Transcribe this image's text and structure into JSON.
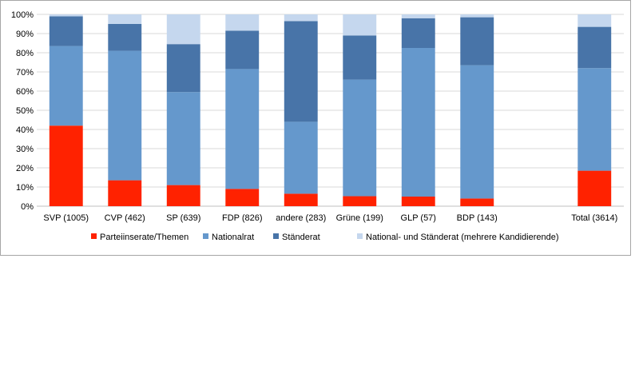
{
  "chart_data": {
    "type": "bar",
    "stacked": true,
    "percent_stacked": true,
    "categories": [
      "SVP (1005)",
      "CVP (462)",
      "SP (639)",
      "FDP (826)",
      "andere (283)",
      "Grüne (199)",
      "GLP (57)",
      "BDP (143)",
      "",
      "Total (3614)"
    ],
    "series": [
      {
        "name": "Parteiinserate/Themen",
        "color": "#ff2200",
        "values": [
          42,
          13.5,
          11,
          9,
          6.5,
          5.2,
          5,
          4,
          null,
          18.5
        ]
      },
      {
        "name": "Nationalrat",
        "color": "#6598cc",
        "values": [
          41.5,
          67.5,
          48.5,
          62.5,
          37.5,
          60.8,
          77.5,
          69.5,
          null,
          53.5
        ]
      },
      {
        "name": "Ständerat",
        "color": "#4874a8",
        "values": [
          15.5,
          14,
          25,
          20,
          52.5,
          23,
          15.5,
          25,
          null,
          21.5
        ]
      },
      {
        "name": "National- und Ständerat (mehrere Kandidierende)",
        "color": "#c5d7ee",
        "values": [
          1,
          5,
          15.5,
          8.5,
          3.5,
          11,
          2,
          1.5,
          null,
          6.5
        ]
      }
    ],
    "y_ticks": [
      "0%",
      "10%",
      "20%",
      "30%",
      "40%",
      "50%",
      "60%",
      "70%",
      "80%",
      "90%",
      "100%"
    ],
    "ylim": [
      0,
      100
    ],
    "grid": true,
    "legend": "bottom",
    "title": "",
    "xlabel": "",
    "ylabel": ""
  }
}
